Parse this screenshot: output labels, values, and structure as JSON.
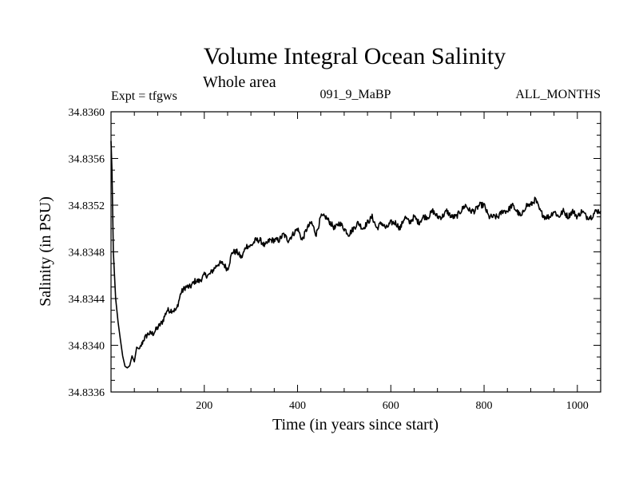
{
  "chart_data": {
    "type": "line",
    "title": "Volume Integral Ocean Salinity",
    "subtitle": "Whole area",
    "header_left": "Expt = tfgws",
    "header_center": "091_9_MaBP",
    "header_right": "ALL_MONTHS",
    "xlabel": "Time (in years since start)",
    "ylabel": "Salinity (in PSU)",
    "xlim": [
      0,
      1050
    ],
    "ylim": [
      34.8336,
      34.836
    ],
    "x_ticks": [
      200,
      400,
      600,
      800,
      1000
    ],
    "x_tick_labels": [
      "200",
      "400",
      "600",
      "800",
      "1000"
    ],
    "y_ticks": [
      34.8336,
      34.834,
      34.8344,
      34.8348,
      34.8352,
      34.8356,
      34.836
    ],
    "y_tick_labels": [
      "34.8336",
      "34.8340",
      "34.8344",
      "34.8348",
      "34.8352",
      "34.8356",
      "34.8360"
    ],
    "grid": false,
    "series": [
      {
        "name": "salinity",
        "x": [
          0,
          2,
          5,
          10,
          15,
          20,
          25,
          30,
          35,
          40,
          45,
          50,
          55,
          60,
          70,
          80,
          90,
          100,
          110,
          120,
          130,
          140,
          150,
          160,
          170,
          180,
          190,
          200,
          210,
          220,
          230,
          240,
          250,
          260,
          270,
          280,
          290,
          300,
          310,
          320,
          330,
          340,
          350,
          360,
          370,
          380,
          390,
          400,
          410,
          420,
          430,
          440,
          450,
          460,
          470,
          480,
          490,
          500,
          510,
          520,
          530,
          540,
          550,
          560,
          570,
          580,
          590,
          600,
          610,
          620,
          630,
          640,
          650,
          660,
          670,
          680,
          690,
          700,
          710,
          720,
          730,
          740,
          750,
          760,
          770,
          780,
          790,
          800,
          810,
          820,
          830,
          840,
          850,
          860,
          870,
          880,
          890,
          900,
          910,
          920,
          930,
          940,
          950,
          960,
          970,
          980,
          990,
          1000,
          1010,
          1020,
          1030,
          1040,
          1050
        ],
        "values": [
          34.83575,
          34.8355,
          34.8348,
          34.8344,
          34.8342,
          34.83405,
          34.8339,
          34.83383,
          34.8338,
          34.8338,
          34.8339,
          34.83385,
          34.834,
          34.83395,
          34.83405,
          34.8341,
          34.8341,
          34.83415,
          34.8342,
          34.8343,
          34.8343,
          34.8343,
          34.83445,
          34.8345,
          34.8345,
          34.83455,
          34.83455,
          34.8346,
          34.8346,
          34.83465,
          34.8347,
          34.8347,
          34.83465,
          34.8348,
          34.8348,
          34.83475,
          34.83485,
          34.83485,
          34.8349,
          34.8349,
          34.83485,
          34.8349,
          34.8349,
          34.8349,
          34.83495,
          34.8349,
          34.83495,
          34.835,
          34.8349,
          34.835,
          34.83505,
          34.83495,
          34.8351,
          34.8351,
          34.83505,
          34.835,
          34.83505,
          34.835,
          34.83495,
          34.835,
          34.83505,
          34.835,
          34.83505,
          34.8351,
          34.835,
          34.83505,
          34.835,
          34.83505,
          34.83505,
          34.835,
          34.8351,
          34.83505,
          34.8351,
          34.83505,
          34.8351,
          34.8351,
          34.83515,
          34.8351,
          34.8351,
          34.83515,
          34.8351,
          34.8351,
          34.83515,
          34.8352,
          34.83515,
          34.83515,
          34.8352,
          34.8352,
          34.8351,
          34.8351,
          34.8351,
          34.83515,
          34.83515,
          34.8352,
          34.83515,
          34.8351,
          34.8352,
          34.8352,
          34.83525,
          34.83515,
          34.8351,
          34.8351,
          34.83515,
          34.8351,
          34.83515,
          34.8351,
          34.83515,
          34.8351,
          34.83515,
          34.8351,
          34.8351,
          34.83515,
          34.83515
        ]
      }
    ]
  }
}
